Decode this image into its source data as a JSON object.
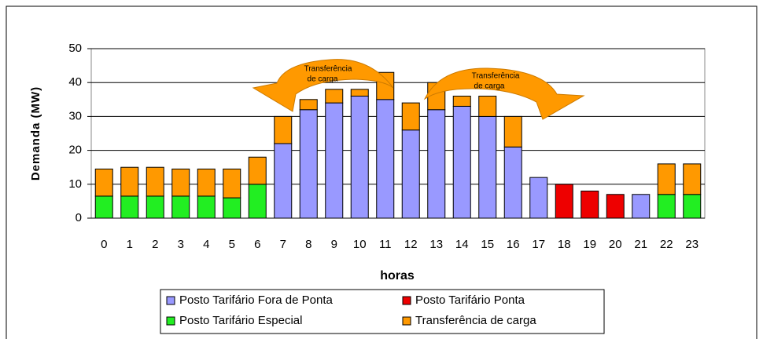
{
  "chart_data": {
    "type": "bar",
    "stacked": true,
    "y_label": "Demanda (MW)",
    "x_label": "horas",
    "categories": [
      "0",
      "1",
      "2",
      "3",
      "4",
      "5",
      "6",
      "7",
      "8",
      "9",
      "10",
      "11",
      "12",
      "13",
      "14",
      "15",
      "16",
      "17",
      "18",
      "19",
      "20",
      "21",
      "22",
      "23"
    ],
    "series": [
      {
        "name": "Posto Tarifário Fora de Ponta",
        "color": "#9999ff",
        "values": [
          null,
          null,
          null,
          null,
          null,
          null,
          null,
          22,
          32,
          34,
          36,
          35,
          26,
          32,
          33,
          30,
          21,
          12,
          null,
          null,
          null,
          7,
          null,
          null
        ]
      },
      {
        "name": "Posto Tarifário Ponta",
        "color": "#ee0000",
        "values": [
          null,
          null,
          null,
          null,
          null,
          null,
          null,
          null,
          null,
          null,
          null,
          null,
          null,
          null,
          null,
          null,
          null,
          null,
          10,
          8,
          7,
          null,
          null,
          null
        ]
      },
      {
        "name": "Posto Tarifário Especial",
        "color": "#22ee22",
        "values": [
          6.5,
          6.5,
          6.5,
          6.5,
          6.5,
          6,
          10,
          null,
          null,
          null,
          null,
          null,
          null,
          null,
          null,
          null,
          null,
          null,
          null,
          null,
          null,
          null,
          7,
          7
        ]
      },
      {
        "name": "Transferência de carga",
        "color": "#ff9900",
        "values": [
          8,
          8.5,
          8.5,
          8,
          8,
          8.5,
          8,
          8,
          3,
          4,
          2,
          8,
          8,
          8,
          3,
          6,
          9,
          null,
          null,
          null,
          null,
          null,
          9,
          9
        ]
      }
    ],
    "ylim": [
      0,
      50
    ],
    "yticks": [
      0,
      10,
      20,
      30,
      40,
      50
    ],
    "grid": true,
    "annotations": [
      [
        "Transferência",
        "de carga"
      ],
      [
        "Transferência",
        "de carga"
      ]
    ]
  }
}
